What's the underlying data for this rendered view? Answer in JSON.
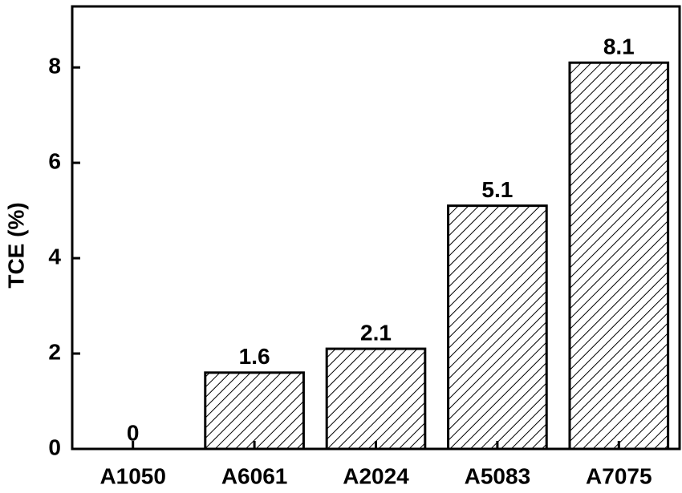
{
  "chart_data": {
    "type": "bar",
    "y_label": "TCE (%)",
    "categories": [
      "A1050",
      "A6061",
      "A2024",
      "A5083",
      "A7075"
    ],
    "values": [
      0,
      1.6,
      2.1,
      5.1,
      8.1
    ],
    "color": "#000000",
    "ylim": [
      0,
      9.28
    ],
    "yticks": [
      0,
      2,
      4,
      6,
      8
    ]
  }
}
